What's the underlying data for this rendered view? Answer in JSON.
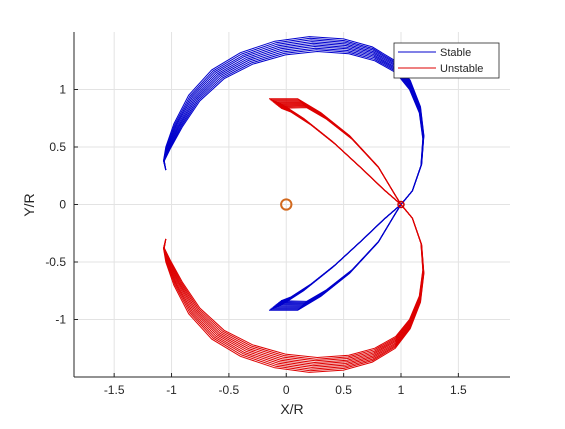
{
  "chart_data": {
    "type": "line",
    "title": "",
    "xlabel": "X/R",
    "ylabel": "Y/R",
    "xlim": [
      -1.85,
      1.95
    ],
    "ylim": [
      -1.5,
      1.5
    ],
    "xticks": [
      -1.5,
      -1,
      -0.5,
      0,
      0.5,
      1,
      1.5
    ],
    "xtick_labels": [
      "-1.5",
      "-1",
      "-0.5",
      "0",
      "0.5",
      "1",
      "1.5"
    ],
    "yticks": [
      -1,
      -0.5,
      0,
      0.5,
      1
    ],
    "ytick_labels": [
      "-1",
      "-0.5",
      "0",
      "0.5",
      "1"
    ],
    "grid": true,
    "legend_position": "top-right",
    "series": [
      {
        "name": "Stable",
        "color": "#0000cc",
        "outer_arc": [
          [
            1.0,
            0.0
          ],
          [
            1.1,
            0.12
          ],
          [
            1.18,
            0.35
          ],
          [
            1.2,
            0.6
          ],
          [
            1.17,
            0.85
          ],
          [
            1.08,
            1.08
          ],
          [
            0.95,
            1.25
          ],
          [
            0.75,
            1.37
          ],
          [
            0.5,
            1.44
          ],
          [
            0.2,
            1.46
          ],
          [
            -0.1,
            1.42
          ],
          [
            -0.4,
            1.32
          ],
          [
            -0.65,
            1.17
          ],
          [
            -0.85,
            0.95
          ],
          [
            -0.98,
            0.7
          ],
          [
            -1.05,
            0.5
          ],
          [
            -1.07,
            0.38
          ],
          [
            -1.05,
            0.3
          ]
        ],
        "inner_lobe": [
          [
            1.0,
            0.0
          ],
          [
            0.85,
            -0.13
          ],
          [
            0.65,
            -0.32
          ],
          [
            0.4,
            -0.55
          ],
          [
            0.15,
            -0.75
          ],
          [
            -0.05,
            -0.88
          ],
          [
            -0.15,
            -0.92
          ],
          [
            0.1,
            -0.92
          ],
          [
            0.3,
            -0.8
          ],
          [
            0.55,
            -0.6
          ],
          [
            0.8,
            -0.33
          ],
          [
            0.95,
            -0.08
          ],
          [
            1.0,
            0.0
          ]
        ]
      },
      {
        "name": "Unstable",
        "color": "#dd0000",
        "outer_arc": [
          [
            1.0,
            0.0
          ],
          [
            1.1,
            -0.12
          ],
          [
            1.18,
            -0.35
          ],
          [
            1.2,
            -0.6
          ],
          [
            1.17,
            -0.85
          ],
          [
            1.08,
            -1.08
          ],
          [
            0.95,
            -1.25
          ],
          [
            0.75,
            -1.37
          ],
          [
            0.5,
            -1.44
          ],
          [
            0.2,
            -1.46
          ],
          [
            -0.1,
            -1.42
          ],
          [
            -0.4,
            -1.32
          ],
          [
            -0.65,
            -1.17
          ],
          [
            -0.85,
            -0.95
          ],
          [
            -0.98,
            -0.7
          ],
          [
            -1.05,
            -0.5
          ],
          [
            -1.07,
            -0.38
          ],
          [
            -1.05,
            -0.3
          ]
        ],
        "inner_lobe": [
          [
            1.0,
            0.0
          ],
          [
            0.85,
            0.13
          ],
          [
            0.65,
            0.32
          ],
          [
            0.4,
            0.55
          ],
          [
            0.15,
            0.75
          ],
          [
            -0.05,
            0.88
          ],
          [
            -0.15,
            0.92
          ],
          [
            0.1,
            0.92
          ],
          [
            0.3,
            0.8
          ],
          [
            0.55,
            0.6
          ],
          [
            0.8,
            0.33
          ],
          [
            0.95,
            0.08
          ],
          [
            1.0,
            0.0
          ]
        ]
      }
    ],
    "markers": [
      {
        "shape": "circle",
        "x": 0.0,
        "y": 0.0,
        "r": 0.045,
        "color": "#d2691e"
      },
      {
        "shape": "circle",
        "x": 1.0,
        "y": 0.0,
        "r": 0.02,
        "color": "#cc0000"
      }
    ]
  }
}
